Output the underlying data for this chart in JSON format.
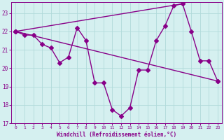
{
  "x": [
    0,
    1,
    2,
    3,
    4,
    5,
    6,
    7,
    8,
    9,
    10,
    11,
    12,
    13,
    14,
    15,
    16,
    17,
    18,
    19,
    20,
    21,
    22,
    23
  ],
  "line1_y": [
    22.0,
    21.8,
    21.8,
    21.3,
    21.1,
    20.3,
    20.6,
    22.2,
    21.5,
    19.2,
    19.2,
    17.75,
    17.4,
    17.85,
    19.9,
    19.9,
    21.5,
    22.3,
    23.4,
    23.5,
    22.0,
    20.4,
    20.4,
    19.3
  ],
  "line2_x": [
    0,
    19
  ],
  "line2_y": [
    22.0,
    23.5
  ],
  "line3_x": [
    0,
    23
  ],
  "line3_y": [
    22.0,
    19.3
  ],
  "color": "#880088",
  "bg_color": "#d5f0f0",
  "grid_color": "#b0dada",
  "xlabel": "Windchill (Refroidissement éolien,°C)",
  "ylim_min": 17,
  "ylim_max": 23.6,
  "xlim_min": -0.5,
  "xlim_max": 23.5,
  "yticks": [
    17,
    18,
    19,
    20,
    21,
    22,
    23
  ],
  "xticks": [
    0,
    1,
    2,
    3,
    4,
    5,
    6,
    7,
    8,
    9,
    10,
    11,
    12,
    13,
    14,
    15,
    16,
    17,
    18,
    19,
    20,
    21,
    22,
    23
  ],
  "markersize": 3,
  "linewidth": 1.0
}
